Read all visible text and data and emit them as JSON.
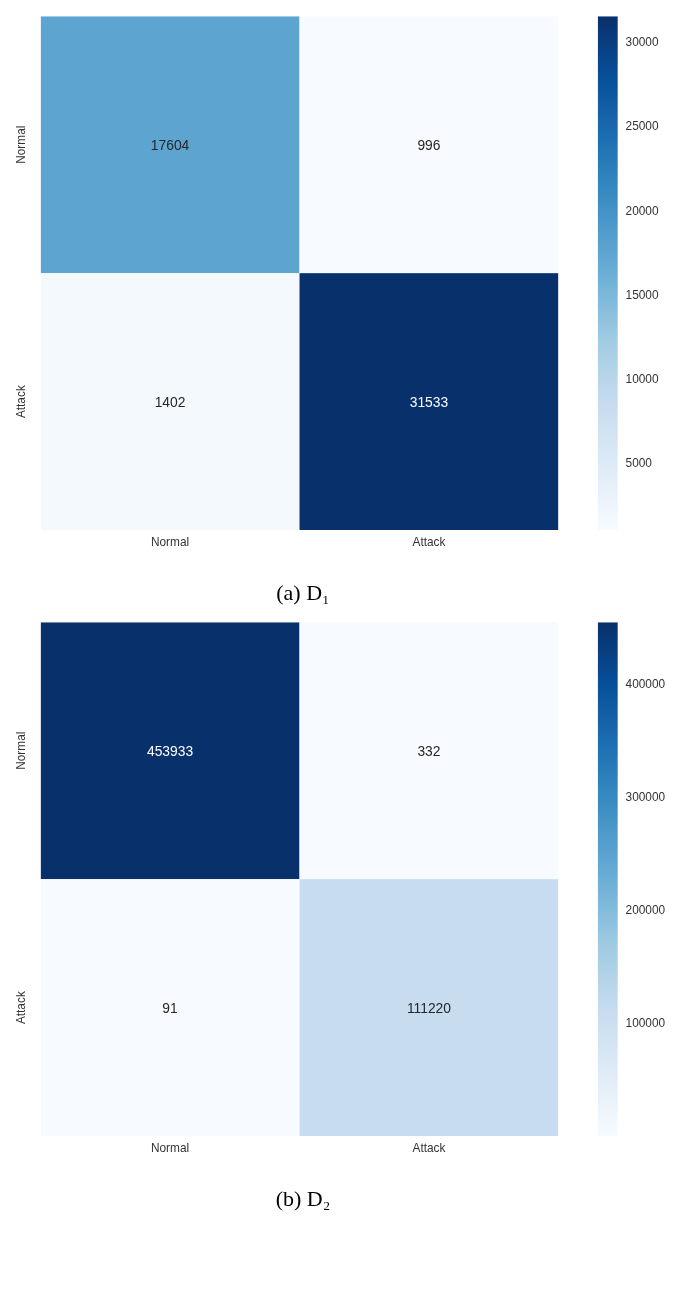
{
  "chart_data": [
    {
      "type": "heatmap",
      "categories": [
        "Normal",
        "Attack"
      ],
      "y_categories": [
        "Normal",
        "Attack"
      ],
      "cells": [
        [
          17604,
          996
        ],
        [
          1402,
          31533
        ]
      ],
      "clim": [
        996,
        31533
      ],
      "cticks": [
        5000,
        10000,
        15000,
        20000,
        25000,
        30000
      ],
      "data_labels": true,
      "annotations": [
        "(a) D₁"
      ]
    },
    {
      "type": "heatmap",
      "categories": [
        "Normal",
        "Attack"
      ],
      "y_categories": [
        "Normal",
        "Attack"
      ],
      "cells": [
        [
          453933,
          332
        ],
        [
          91,
          111220
        ]
      ],
      "clim": [
        91,
        453933
      ],
      "cticks": [
        100000,
        200000,
        300000,
        400000
      ],
      "data_labels": true,
      "annotations": [
        "(b) D₂"
      ]
    }
  ]
}
